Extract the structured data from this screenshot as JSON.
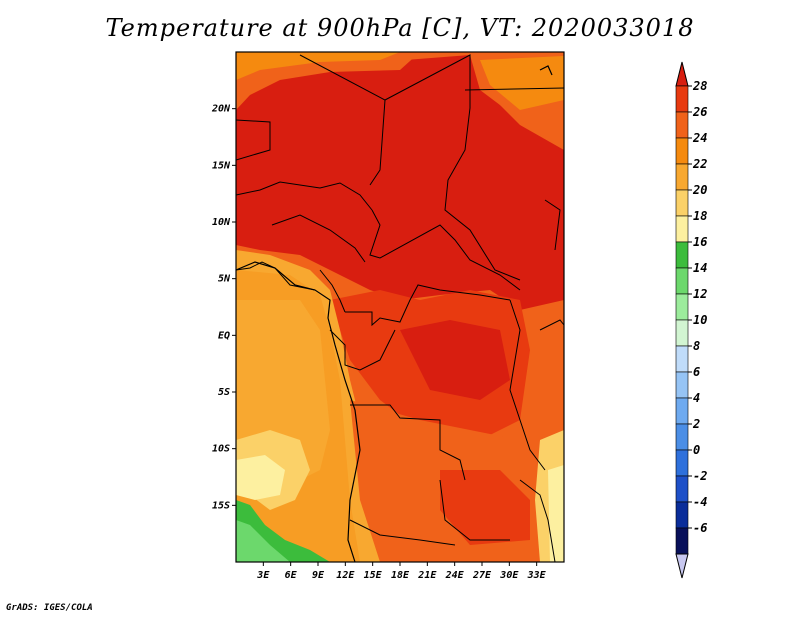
{
  "title": "Temperature at 900hPa [C], VT: 2020033018",
  "credit": "GrADS: IGES/COLA",
  "colors": {
    "frame": "#000000",
    "border": "#000000"
  },
  "map": {
    "lon_range": [
      0,
      36
    ],
    "lat_range": [
      -20,
      25
    ],
    "lon_ticks": [
      "3E",
      "6E",
      "9E",
      "12E",
      "15E",
      "18E",
      "21E",
      "24E",
      "27E",
      "30E",
      "33E"
    ],
    "lat_ticks": [
      "20N",
      "15N",
      "10N",
      "5N",
      "EQ",
      "5S",
      "10S",
      "15S"
    ]
  },
  "colorbar": {
    "labels": [
      "28",
      "26",
      "24",
      "22",
      "20",
      "18",
      "16",
      "14",
      "12",
      "10",
      "8",
      "6",
      "4",
      "2",
      "0",
      "-2",
      "-4",
      "-6"
    ],
    "colors": [
      "#d81e10",
      "#e83a10",
      "#f0621a",
      "#f58a0f",
      "#f8a830",
      "#fbd168",
      "#fdf0a0",
      "#3cbc3c",
      "#6cd86c",
      "#9cec9c",
      "#d2f5d2",
      "#c0dcfa",
      "#96c4f5",
      "#6eaaf0",
      "#4b8ee6",
      "#2e70dc",
      "#1e50c8",
      "#0a2d9a",
      "#08105a"
    ],
    "under_color": "#c8c8f0"
  }
}
